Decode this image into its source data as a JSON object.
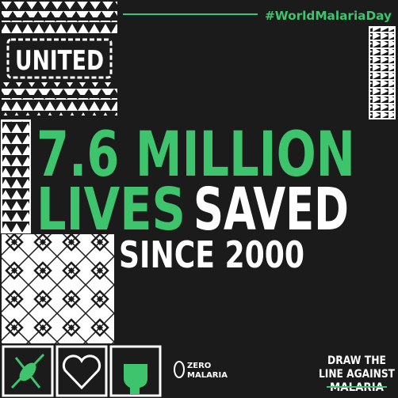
{
  "hashtag": "#WorldMalariaDay",
  "badge": "UNITED",
  "headline": {
    "line1": "7.6 MILLION",
    "line2_green": "LIVES",
    "line2_white": "SAVED",
    "line3": "SINCE 2000"
  },
  "logo": {
    "top": "ZERO",
    "bottom": "MALARIA"
  },
  "slogan": {
    "line1": "DRAW THE",
    "line2": "LINE AGAINST",
    "line3": "MALARIA"
  }
}
